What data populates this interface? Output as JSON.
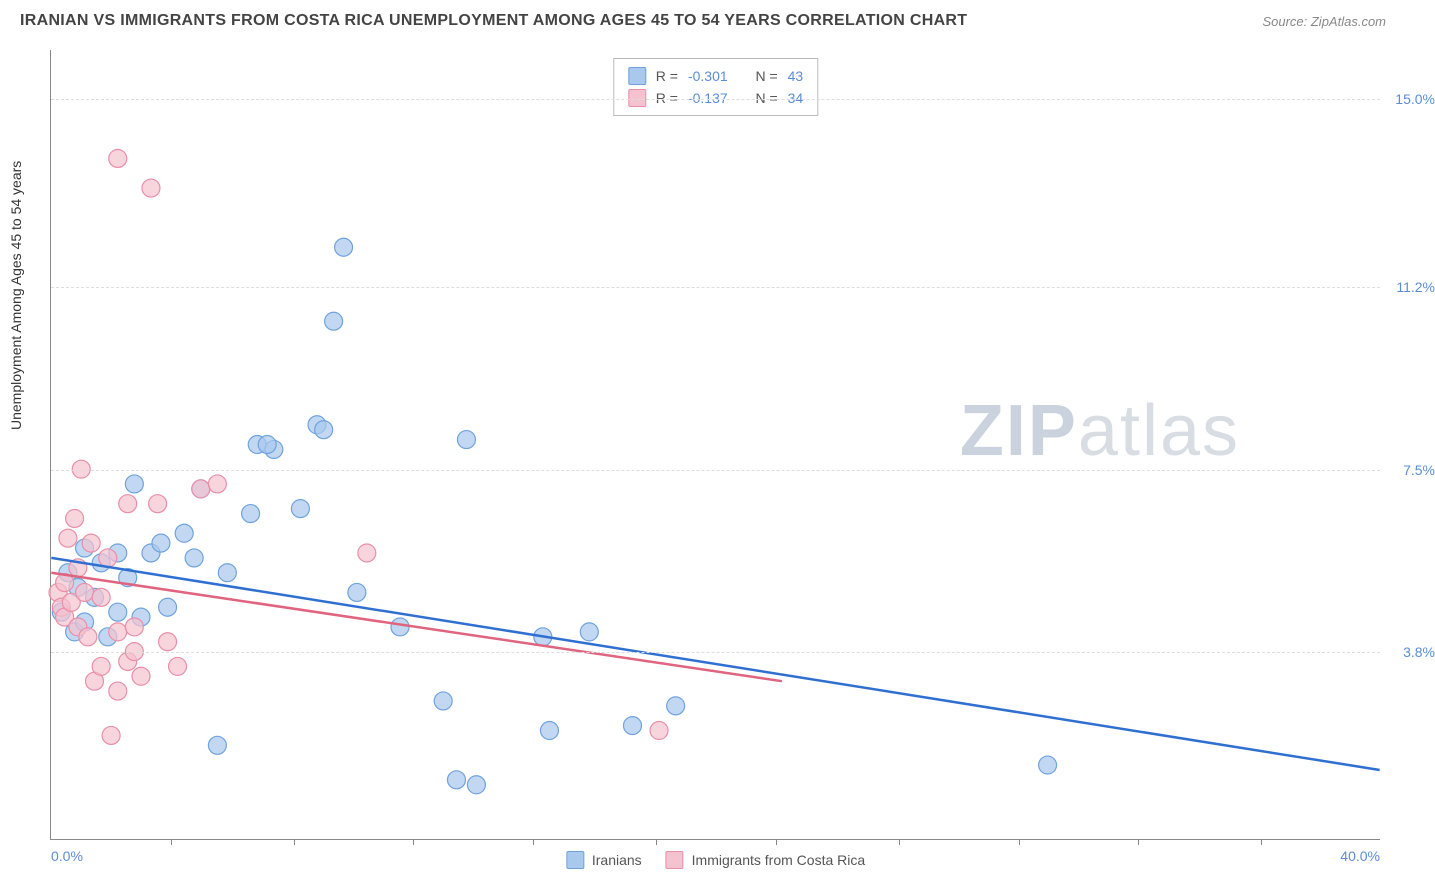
{
  "header": {
    "title": "IRANIAN VS IMMIGRANTS FROM COSTA RICA UNEMPLOYMENT AMONG AGES 45 TO 54 YEARS CORRELATION CHART",
    "source": "Source: ZipAtlas.com"
  },
  "chart": {
    "type": "scatter",
    "ylabel": "Unemployment Among Ages 45 to 54 years",
    "xlim": [
      0,
      40
    ],
    "ylim": [
      0,
      16
    ],
    "x_tick_labels": [
      "0.0%",
      "40.0%"
    ],
    "y_ticks": [
      {
        "value": 3.8,
        "label": "3.8%"
      },
      {
        "value": 7.5,
        "label": "7.5%"
      },
      {
        "value": 11.2,
        "label": "11.2%"
      },
      {
        "value": 15.0,
        "label": "15.0%"
      }
    ],
    "x_minor_ticks": [
      3.6,
      7.3,
      10.9,
      14.5,
      18.2,
      21.8,
      25.5,
      29.1,
      32.7,
      36.4
    ],
    "grid_color": "#dddddd",
    "axis_color": "#888888",
    "background_color": "#ffffff",
    "tick_label_color": "#5b8dd6",
    "watermark": "ZIPatlas",
    "series": [
      {
        "name": "Iranians",
        "color_fill": "#a8c8ec",
        "color_stroke": "#6fa3dd",
        "marker_radius": 9,
        "marker_opacity": 0.7,
        "stats": {
          "R": "-0.301",
          "N": "43"
        },
        "trend": {
          "x1": 0,
          "y1": 5.7,
          "x2": 40,
          "y2": 1.4,
          "stroke": "#2e6fd1",
          "width": 2.5
        },
        "points": [
          [
            0.3,
            4.6
          ],
          [
            0.5,
            5.4
          ],
          [
            0.7,
            4.2
          ],
          [
            0.8,
            5.1
          ],
          [
            1.0,
            5.9
          ],
          [
            1.0,
            4.4
          ],
          [
            1.3,
            4.9
          ],
          [
            1.5,
            5.6
          ],
          [
            1.7,
            4.1
          ],
          [
            2.0,
            5.8
          ],
          [
            2.0,
            4.6
          ],
          [
            2.3,
            5.3
          ],
          [
            2.5,
            7.2
          ],
          [
            2.7,
            4.5
          ],
          [
            3.0,
            5.8
          ],
          [
            3.3,
            6.0
          ],
          [
            3.5,
            4.7
          ],
          [
            4.0,
            6.2
          ],
          [
            4.3,
            5.7
          ],
          [
            4.5,
            7.1
          ],
          [
            5.0,
            1.9
          ],
          [
            5.3,
            5.4
          ],
          [
            6.0,
            6.6
          ],
          [
            6.2,
            8.0
          ],
          [
            6.7,
            7.9
          ],
          [
            7.5,
            6.7
          ],
          [
            8.0,
            8.4
          ],
          [
            8.2,
            8.3
          ],
          [
            8.5,
            10.5
          ],
          [
            8.8,
            12.0
          ],
          [
            9.2,
            5.0
          ],
          [
            10.5,
            4.3
          ],
          [
            11.8,
            2.8
          ],
          [
            12.8,
            1.1
          ],
          [
            12.2,
            1.2
          ],
          [
            12.5,
            8.1
          ],
          [
            14.8,
            4.1
          ],
          [
            15.0,
            2.2
          ],
          [
            16.2,
            4.2
          ],
          [
            17.5,
            2.3
          ],
          [
            18.8,
            2.7
          ],
          [
            30.0,
            1.5
          ],
          [
            6.5,
            8.0
          ]
        ]
      },
      {
        "name": "Immigrants from Costa Rica",
        "color_fill": "#f5c2cf",
        "color_stroke": "#e98fa8",
        "marker_radius": 9,
        "marker_opacity": 0.7,
        "stats": {
          "R": "-0.137",
          "N": "34"
        },
        "trend": {
          "x1": 0,
          "y1": 5.4,
          "x2": 22,
          "y2": 3.2,
          "stroke": "#e0637f",
          "width": 2.5
        },
        "points": [
          [
            0.2,
            5.0
          ],
          [
            0.3,
            4.7
          ],
          [
            0.4,
            5.2
          ],
          [
            0.4,
            4.5
          ],
          [
            0.5,
            6.1
          ],
          [
            0.6,
            4.8
          ],
          [
            0.7,
            6.5
          ],
          [
            0.8,
            5.5
          ],
          [
            0.8,
            4.3
          ],
          [
            0.9,
            7.5
          ],
          [
            1.0,
            5.0
          ],
          [
            1.1,
            4.1
          ],
          [
            1.2,
            6.0
          ],
          [
            1.3,
            3.2
          ],
          [
            1.5,
            4.9
          ],
          [
            1.5,
            3.5
          ],
          [
            1.7,
            5.7
          ],
          [
            1.8,
            2.1
          ],
          [
            2.0,
            4.2
          ],
          [
            2.0,
            3.0
          ],
          [
            2.3,
            6.8
          ],
          [
            2.3,
            3.6
          ],
          [
            2.5,
            4.3
          ],
          [
            2.7,
            3.3
          ],
          [
            3.0,
            13.2
          ],
          [
            3.2,
            6.8
          ],
          [
            3.5,
            4.0
          ],
          [
            3.8,
            3.5
          ],
          [
            4.5,
            7.1
          ],
          [
            5.0,
            7.2
          ],
          [
            9.5,
            5.8
          ],
          [
            18.3,
            2.2
          ],
          [
            2.0,
            13.8
          ],
          [
            2.5,
            3.8
          ]
        ]
      }
    ],
    "legend_top_labels": {
      "R": "R =",
      "N": "N ="
    },
    "legend_bottom_labels": [
      "Iranians",
      "Immigrants from Costa Rica"
    ]
  }
}
